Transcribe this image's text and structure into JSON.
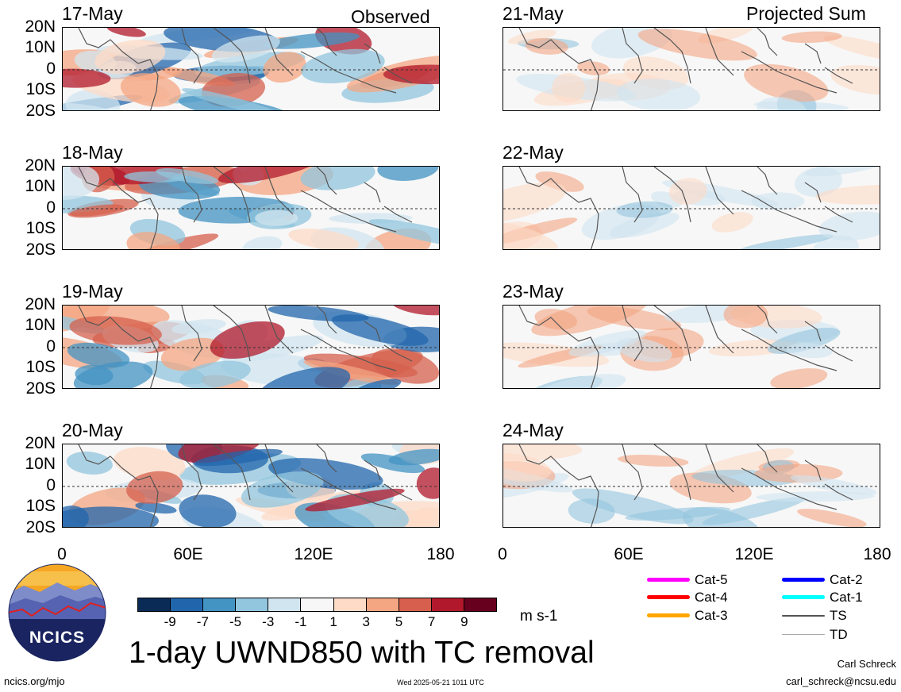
{
  "panels_left": [
    {
      "date": "17-May",
      "tag": "Observed"
    },
    {
      "date": "18-May",
      "tag": ""
    },
    {
      "date": "19-May",
      "tag": ""
    },
    {
      "date": "20-May",
      "tag": ""
    }
  ],
  "panels_right": [
    {
      "date": "21-May",
      "tag": "Projected Sum"
    },
    {
      "date": "22-May",
      "tag": ""
    },
    {
      "date": "23-May",
      "tag": ""
    },
    {
      "date": "24-May",
      "tag": ""
    }
  ],
  "lat_labels": [
    "20N",
    "10N",
    "0",
    "10S",
    "20S"
  ],
  "lon_labels": [
    "0",
    "60E",
    "120E",
    "180"
  ],
  "colorbar": {
    "ticks": [
      "-9",
      "-7",
      "-5",
      "-3",
      "-1",
      "1",
      "3",
      "5",
      "7",
      "9"
    ],
    "colors": [
      "#0b2b57",
      "#2166ac",
      "#4393c3",
      "#92c5de",
      "#d1e5f0",
      "#f7f7f7",
      "#fddbc7",
      "#f4a582",
      "#d6604d",
      "#b2182b",
      "#67001f"
    ],
    "units": "m s-1"
  },
  "title": "1-day UWND850 with TC removal",
  "logo": {
    "text": "NCICS"
  },
  "footer": {
    "url": "ncics.org/mjo",
    "timestamp": "Wed 2025-05-21 1011 UTC",
    "author": "Carl Schreck",
    "email": "carl_schreck@ncsu.edu"
  },
  "tc_legend": [
    {
      "label": "Cat-5",
      "color": "#ff00ff"
    },
    {
      "label": "Cat-4",
      "color": "#ff0000"
    },
    {
      "label": "Cat-3",
      "color": "#ffa500"
    },
    {
      "label": "Cat-2",
      "color": "#0000ff"
    },
    {
      "label": "Cat-1",
      "color": "#00ffff"
    },
    {
      "label": "TS",
      "color": "#555555"
    },
    {
      "label": "TD",
      "color": "#aaaaaa"
    }
  ]
}
